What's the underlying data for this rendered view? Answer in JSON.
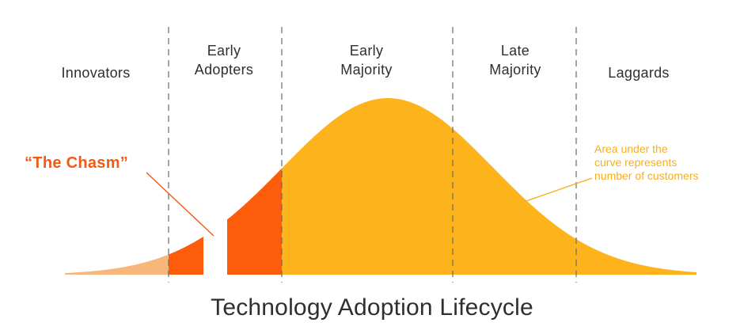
{
  "segments": [
    {
      "label_lines": [
        "Innovators"
      ],
      "color": "#f8b77a"
    },
    {
      "label_lines": [
        "Early",
        "Adopters"
      ],
      "color": "#fd5c0b"
    },
    {
      "label_lines": [
        "Early",
        "Majority"
      ],
      "color": "#fdb41c"
    },
    {
      "label_lines": [
        "Late",
        "Majority"
      ],
      "color": "#fdb41c"
    },
    {
      "label_lines": [
        "Laggards"
      ],
      "color": "#fdb41c"
    }
  ],
  "chasm": {
    "label": "“The Chasm”",
    "color": "#f25a14"
  },
  "area_note": {
    "lines": [
      "Area under the",
      "curve represents",
      "number of customers"
    ],
    "color": "#f7b01c"
  },
  "title": "Technology Adoption Lifecycle",
  "colors": {
    "divider": "#6b6b6b",
    "text": "#2f2f2f"
  }
}
